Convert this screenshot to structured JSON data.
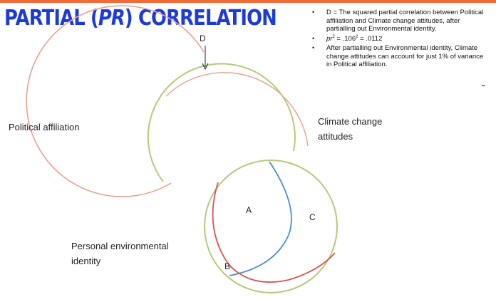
{
  "title": {
    "before": "PARTIAL (",
    "abbr": "PR",
    "after": ") CORRELATION"
  },
  "bullets": {
    "b1": "D = The squared partial correlation between Political affiliation and Climate change attitudes, after partialling out Environmental identity.",
    "b2_symbol": "pr",
    "b2_exp1": "2",
    "b2_mid": " = .106",
    "b2_exp2": "2",
    "b2_end": " = .0112",
    "b3": "After partialling out Environmental identity, Climate change attitudes can account for just 1% of variance in Political affiliation."
  },
  "labels": {
    "political_line1": "Political affiliation",
    "climate_line1": "Climate change",
    "climate_line2": "attitudes",
    "personal_line1": "Personal environmental",
    "personal_line2": "identity"
  },
  "regions": {
    "d": "D",
    "a": "A",
    "b": "B",
    "c": "C"
  },
  "colors": {
    "title": "#1d3bd6",
    "accent_bar": "#f26a3a",
    "political_arc": "#e8a090",
    "climate_arc": "#b5c97a",
    "personal_circle": "#b5c97a",
    "inner_blue": "#4a8ed0",
    "inner_red": "#d9534f"
  }
}
